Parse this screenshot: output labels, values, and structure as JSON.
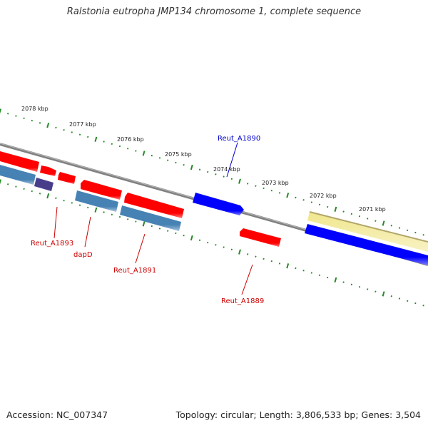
{
  "title": "Ralstonia eutropha JMP134 chromosome 1, complete sequence",
  "footer": {
    "accession": "Accession: NC_007347",
    "stats": "Topology: circular; Length: 3,806,533 bp; Genes: 3,504"
  },
  "colors": {
    "tick": "#228b22",
    "backbone": "#808080",
    "forward_gene": "#ff0000",
    "reverse_gene": "#0000ff",
    "feature_blue": "#4682b4",
    "feature_dark": "#483d8b",
    "feature_yellow": "#f0e68c",
    "label_red": "#cc0000",
    "label_blue": "#0000cc"
  },
  "scale": {
    "labels": [
      "2078 kbp",
      "2077 kbp",
      "2076 kbp",
      "2075 kbp",
      "2074 kbp",
      "2073 kbp",
      "2072 kbp",
      "2071 kbp"
    ]
  },
  "gene_labels": [
    {
      "text": "Reut_A1890",
      "color": "blue"
    },
    {
      "text": "Reut_A1893",
      "color": "red"
    },
    {
      "text": "dapD",
      "color": "red"
    },
    {
      "text": "Reut_A1891",
      "color": "red"
    },
    {
      "text": "Reut_A1889",
      "color": "red"
    }
  ]
}
